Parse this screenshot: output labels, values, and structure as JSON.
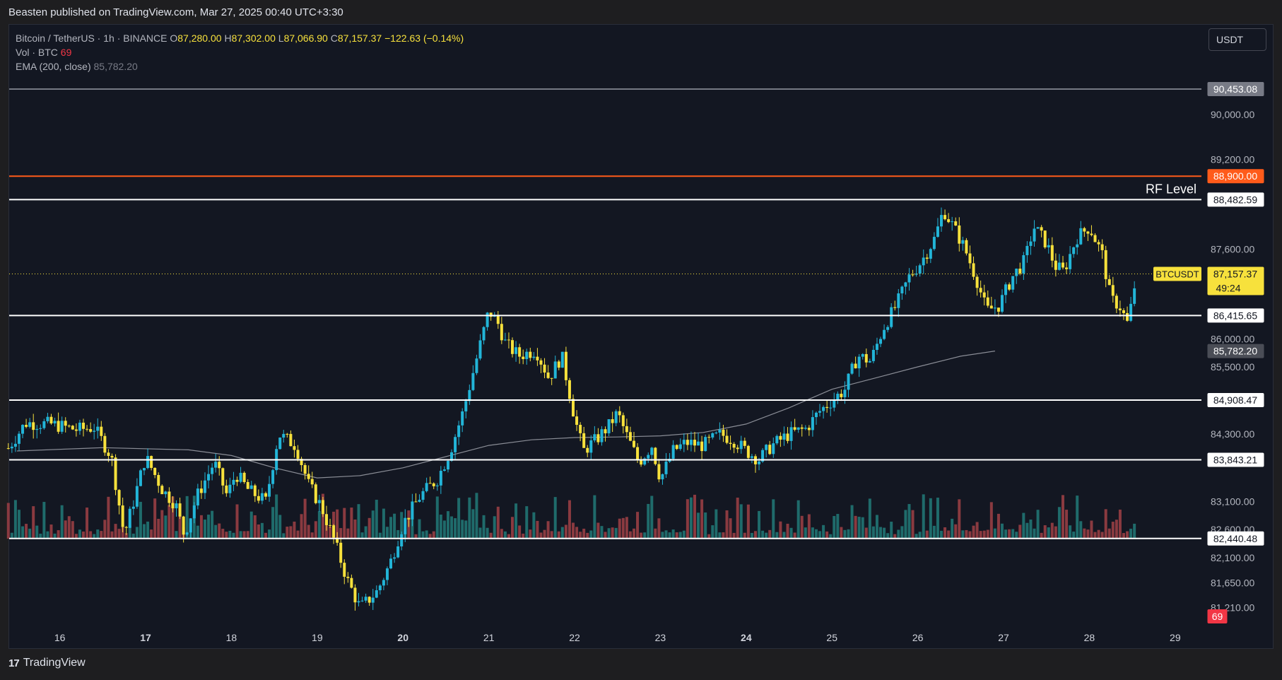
{
  "header": {
    "published": "Beasten published on TradingView.com, Mar 27, 2025 00:40 UTC+3:30"
  },
  "legend": {
    "symbol": "Bitcoin / TetherUS · 1h · BINANCE",
    "o_label": "O",
    "o_value": "87,280.00",
    "h_label": "H",
    "h_value": "87,302.00",
    "l_label": "L",
    "l_value": "87,066.90",
    "c_label": "C",
    "c_value": "87,157.37",
    "change": "−122.63 (−0.14%)",
    "vol_label": "Vol · BTC",
    "vol_value": "69",
    "ema_label": "EMA (200, close)",
    "ema_value": "85,782.20"
  },
  "currency_button": "USDT",
  "footer": {
    "logo_icon": "tradingview-logo-icon",
    "brand": "TradingView"
  },
  "colors": {
    "background": "#131722",
    "up": "#22b5d8",
    "down": "#f7e13c",
    "vol_up": "#1f6b6b",
    "vol_down": "#8a3a40",
    "rf_line": "#ff5b1a",
    "level": "#ffffff"
  },
  "chart_data": {
    "type": "candlestick",
    "symbol": "BTCUSDT",
    "timeframe": "1h",
    "ylim": [
      80900,
      91600
    ],
    "x_ticks": [
      "16",
      "17",
      "18",
      "19",
      "20",
      "21",
      "22",
      "23",
      "24",
      "25",
      "26",
      "27",
      "28",
      "29"
    ],
    "y_ticks": [
      "90,000.00",
      "89,200.00",
      "87,600.00",
      "86,000.00",
      "85,500.00",
      "84,300.00",
      "83,100.00",
      "82,600.00",
      "82,100.00",
      "81,650.00",
      "81,210.00"
    ],
    "y_tick_values": [
      90000,
      89200,
      87600,
      86000,
      85500,
      84300,
      83100,
      82600,
      82100,
      81650,
      81210
    ],
    "levels": [
      {
        "value": 90453.08,
        "label": "90,453.08",
        "color": "#b2b5be",
        "tag_bg": "#787b86"
      },
      {
        "value": 88900.0,
        "label": "88,900.00",
        "color": "#ff5b1a",
        "tag_bg": "#ff5b1a"
      },
      {
        "value": 88482.59,
        "label": "88,482.59",
        "color": "#ffffff",
        "tag_bg": "#ffffff",
        "text": "RF Level"
      },
      {
        "value": 86415.65,
        "label": "86,415.65",
        "color": "#ffffff",
        "tag_bg": "#ffffff"
      },
      {
        "value": 84908.47,
        "label": "84,908.47",
        "color": "#ffffff",
        "tag_bg": "#ffffff"
      },
      {
        "value": 83843.21,
        "label": "83,843.21",
        "color": "#ffffff",
        "tag_bg": "#ffffff"
      },
      {
        "value": 82440.48,
        "label": "82,440.48",
        "color": "#ffffff",
        "tag_bg": "#ffffff"
      }
    ],
    "ema": {
      "name": "EMA (200, close)",
      "last": 85782.2,
      "label": "85,782.20",
      "points": [
        [
          15.5,
          84000
        ],
        [
          16.5,
          84060
        ],
        [
          17.5,
          84020
        ],
        [
          18,
          83920
        ],
        [
          18.5,
          83700
        ],
        [
          19,
          83520
        ],
        [
          19.5,
          83560
        ],
        [
          20,
          83700
        ],
        [
          20.5,
          83900
        ],
        [
          21,
          84100
        ],
        [
          21.5,
          84200
        ],
        [
          22,
          84240
        ],
        [
          22.5,
          84250
        ],
        [
          23,
          84270
        ],
        [
          23.5,
          84330
        ],
        [
          24,
          84480
        ],
        [
          24.5,
          84770
        ],
        [
          25,
          85100
        ],
        [
          25.5,
          85300
        ],
        [
          26,
          85500
        ],
        [
          26.5,
          85690
        ],
        [
          26.9,
          85782
        ]
      ]
    },
    "last_price": {
      "name": "BTCUSDT",
      "value": 87157.37,
      "label": "87,157.37",
      "countdown": "49:24"
    },
    "volume_last": "69",
    "anchors": [
      [
        15.4,
        84050
      ],
      [
        15.6,
        84500
      ],
      [
        15.9,
        84480
      ],
      [
        16.2,
        84380
      ],
      [
        16.4,
        84420
      ],
      [
        16.6,
        83900
      ],
      [
        16.75,
        82500
      ],
      [
        16.85,
        83050
      ],
      [
        17,
        83900
      ],
      [
        17.2,
        83300
      ],
      [
        17.35,
        83050
      ],
      [
        17.45,
        82500
      ],
      [
        17.6,
        83200
      ],
      [
        17.8,
        83800
      ],
      [
        17.95,
        83200
      ],
      [
        18.05,
        83600
      ],
      [
        18.2,
        83300
      ],
      [
        18.4,
        83100
      ],
      [
        18.55,
        84300
      ],
      [
        18.75,
        84100
      ],
      [
        18.9,
        83400
      ],
      [
        19.05,
        83000
      ],
      [
        19.2,
        82400
      ],
      [
        19.35,
        81700
      ],
      [
        19.5,
        81200
      ],
      [
        19.7,
        81500
      ],
      [
        19.85,
        82000
      ],
      [
        20,
        82700
      ],
      [
        20.2,
        83200
      ],
      [
        20.4,
        83500
      ],
      [
        20.55,
        84000
      ],
      [
        20.7,
        84700
      ],
      [
        20.85,
        85600
      ],
      [
        21,
        86500
      ],
      [
        21.1,
        86300
      ],
      [
        21.2,
        85900
      ],
      [
        21.35,
        85700
      ],
      [
        21.55,
        85800
      ],
      [
        21.7,
        85300
      ],
      [
        21.85,
        85700
      ],
      [
        22,
        84600
      ],
      [
        22.1,
        84000
      ],
      [
        22.25,
        84200
      ],
      [
        22.4,
        84450
      ],
      [
        22.5,
        84680
      ],
      [
        22.6,
        84300
      ],
      [
        22.75,
        83800
      ],
      [
        22.9,
        84100
      ],
      [
        23.0,
        83500
      ],
      [
        23.15,
        84000
      ],
      [
        23.3,
        84150
      ],
      [
        23.5,
        84100
      ],
      [
        23.7,
        84300
      ],
      [
        23.85,
        84200
      ],
      [
        24.0,
        84000
      ],
      [
        24.15,
        83850
      ],
      [
        24.3,
        84100
      ],
      [
        24.5,
        84300
      ],
      [
        24.7,
        84400
      ],
      [
        24.85,
        84700
      ],
      [
        25.0,
        84900
      ],
      [
        25.15,
        85100
      ],
      [
        25.3,
        85700
      ],
      [
        25.45,
        85600
      ],
      [
        25.6,
        86200
      ],
      [
        25.75,
        86600
      ],
      [
        25.9,
        87100
      ],
      [
        26.05,
        87400
      ],
      [
        26.2,
        87800
      ],
      [
        26.3,
        88300
      ],
      [
        26.45,
        87900
      ],
      [
        26.55,
        87600
      ],
      [
        26.7,
        87000
      ],
      [
        26.8,
        86500
      ],
      [
        26.95,
        86600
      ],
      [
        27.1,
        87100
      ],
      [
        27.25,
        87400
      ],
      [
        27.35,
        88000
      ],
      [
        27.5,
        87700
      ],
      [
        27.6,
        87300
      ],
      [
        27.7,
        87200
      ],
      [
        27.85,
        87800
      ],
      [
        28.0,
        88000
      ],
      [
        28.15,
        87500
      ],
      [
        28.25,
        86700
      ],
      [
        28.35,
        86600
      ],
      [
        28.45,
        86250
      ],
      [
        28.55,
        87157
      ]
    ]
  }
}
